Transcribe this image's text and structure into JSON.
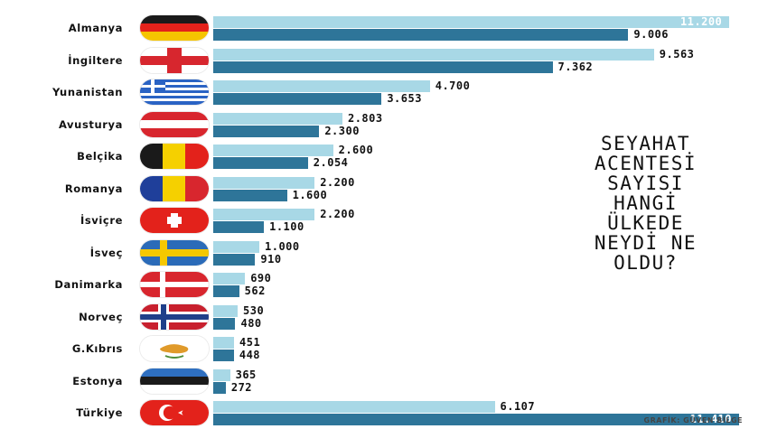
{
  "chart_data": {
    "type": "bar",
    "orientation": "horizontal",
    "title": "SEYAHAT\nACENTESİ\nSAYISI\nHANGİ\nÜLKEDE\nNEYDİ NE\nOLDU?",
    "credit": "GRAFİK: GÜVEN BİLGE",
    "categories": [
      "Almanya",
      "İngiltere",
      "Yunanistan",
      "Avusturya",
      "Belçika",
      "Romanya",
      "İsviçre",
      "İsveç",
      "Danimarka",
      "Norveç",
      "G.Kıbrıs",
      "Estonya",
      "Türkiye"
    ],
    "flags": [
      "germany-flag-icon",
      "england-flag-icon",
      "greece-flag-icon",
      "austria-flag-icon",
      "belgium-flag-icon",
      "romania-flag-icon",
      "switzerland-flag-icon",
      "sweden-flag-icon",
      "denmark-flag-icon",
      "norway-flag-icon",
      "north-cyprus-flag-icon",
      "estonia-flag-icon",
      "turkey-flag-icon"
    ],
    "series": [
      {
        "values": [
          11200,
          9563,
          4700,
          2803,
          2600,
          2200,
          2200,
          1000,
          690,
          530,
          451,
          365,
          6107
        ],
        "labels": [
          "11.200",
          "9.563",
          "4.700",
          "2.803",
          "2.600",
          "2.200",
          "2.200",
          "1.000",
          "690",
          "530",
          "451",
          "365",
          "6.107"
        ]
      },
      {
        "values": [
          9006,
          7362,
          3653,
          2300,
          2054,
          1600,
          1100,
          910,
          562,
          480,
          448,
          272,
          11410
        ],
        "labels": [
          "9.006",
          "7.362",
          "3.653",
          "2.300",
          "2.054",
          "1.600",
          "1.100",
          "910",
          "562",
          "480",
          "448",
          "272",
          "11.410"
        ]
      }
    ],
    "colors": {
      "series_light": "#a8d8e6",
      "series_dark": "#2e7599"
    },
    "xlim": [
      0,
      11410
    ],
    "legend": "none",
    "grid": false
  }
}
